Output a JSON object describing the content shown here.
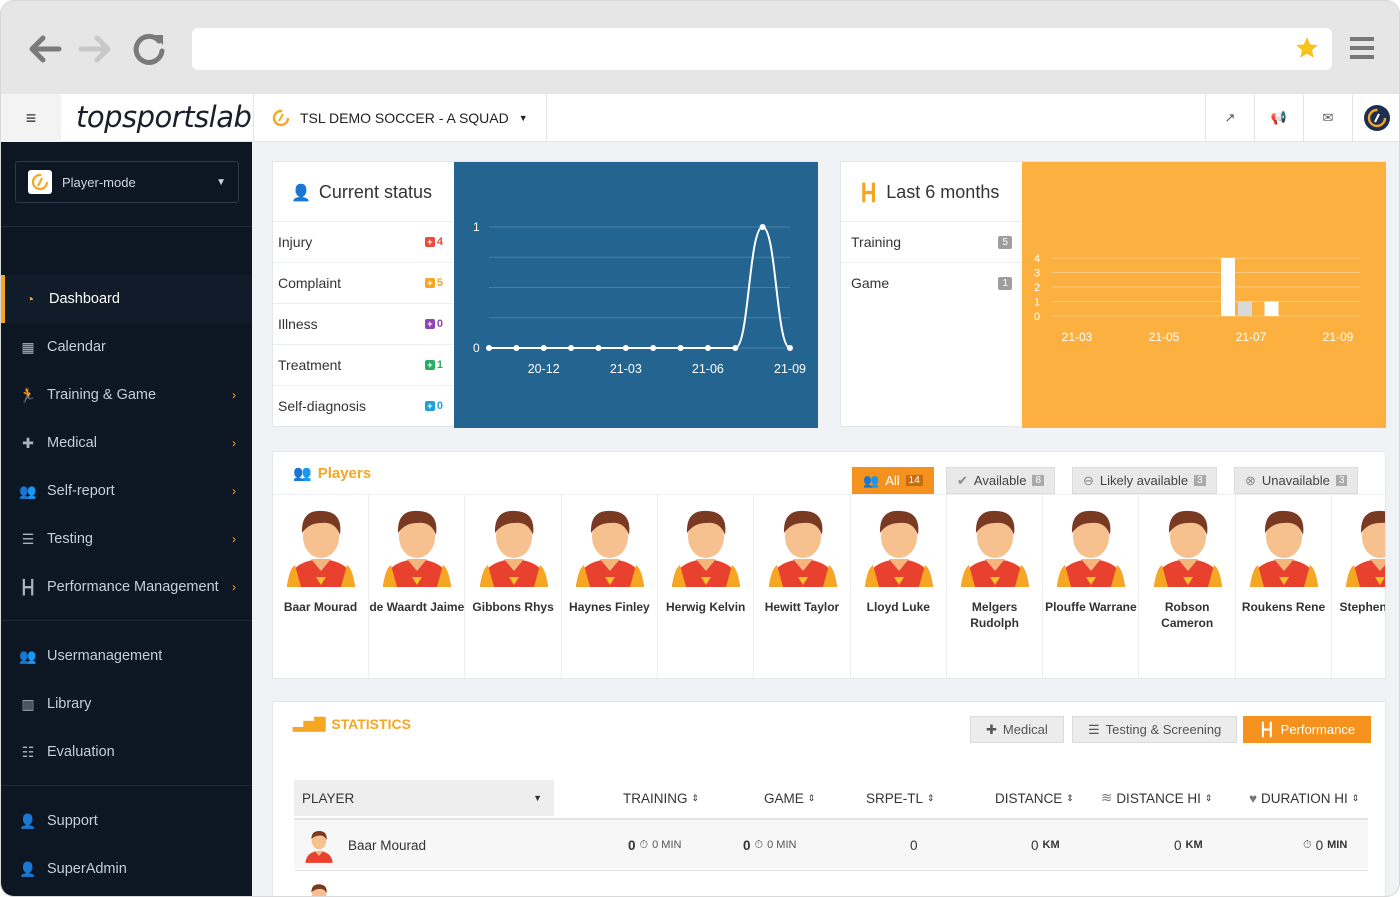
{
  "header": {
    "team": "TSL DEMO SOCCER - A SQUAD",
    "logo": "topsportslab"
  },
  "sidebar": {
    "mode": "Player-mode",
    "items": [
      {
        "label": "Dashboard",
        "icon": "dashboard-icon",
        "active": true
      },
      {
        "label": "Calendar",
        "icon": "calendar-icon"
      },
      {
        "label": "Training & Game",
        "icon": "running-icon",
        "chevron": true
      },
      {
        "label": "Medical",
        "icon": "medical-kit-icon",
        "chevron": true
      },
      {
        "label": "Self-report",
        "icon": "users-icon",
        "chevron": true
      },
      {
        "label": "Testing",
        "icon": "list-icon",
        "chevron": true
      },
      {
        "label": "Performance Management",
        "icon": "dumbbell-icon",
        "chevron": true
      },
      {
        "label": "Usermanagement",
        "icon": "user-group-icon"
      },
      {
        "label": "Library",
        "icon": "library-icon"
      },
      {
        "label": "Evaluation",
        "icon": "list-ol-icon"
      },
      {
        "label": "Support",
        "icon": "user-icon"
      },
      {
        "label": "SuperAdmin",
        "icon": "user-cog-icon"
      }
    ]
  },
  "current_status": {
    "title": "Current status",
    "rows": [
      {
        "label": "Injury",
        "count": "4",
        "color": "#e74c3c"
      },
      {
        "label": "Complaint",
        "count": "5",
        "color": "#f5a623"
      },
      {
        "label": "Illness",
        "count": "0",
        "color": "#8e44ad"
      },
      {
        "label": "Treatment",
        "count": "1",
        "color": "#27ae60"
      },
      {
        "label": "Self-diagnosis",
        "count": "0",
        "color": "#1fa2d6"
      }
    ]
  },
  "last_months": {
    "title": "Last 6 months",
    "rows": [
      {
        "label": "Training",
        "count": "5"
      },
      {
        "label": "Game",
        "count": "1"
      }
    ]
  },
  "chart_data": [
    {
      "type": "line",
      "background": "#236491",
      "x_ticks": [
        "20-12",
        "21-03",
        "21-06",
        "21-09"
      ],
      "y_ticks": [
        "0",
        "1"
      ],
      "ylim": [
        0,
        1
      ],
      "values": [
        0,
        0,
        0,
        0,
        0,
        0,
        0,
        0,
        0,
        0,
        1,
        0
      ]
    },
    {
      "type": "bar",
      "background": "#fbb040",
      "x_ticks": [
        "21-03",
        "21-05",
        "21-07",
        "21-09"
      ],
      "y_ticks": [
        "0",
        "1",
        "2",
        "3",
        "4"
      ],
      "ylim": [
        0,
        4
      ],
      "bars": [
        {
          "period": "21-07",
          "value": 4,
          "color": "#ffffff"
        },
        {
          "period": "21-07",
          "value": 1,
          "color": "#d9d9d9"
        },
        {
          "period": "21-08",
          "value": 1,
          "color": "#ffffff"
        }
      ]
    }
  ],
  "players": {
    "title": "Players",
    "filters": [
      {
        "label": "All",
        "count": "14",
        "active": true
      },
      {
        "label": "Available",
        "count": "8"
      },
      {
        "label": "Likely available",
        "count": "3"
      },
      {
        "label": "Unavailable",
        "count": "3"
      }
    ],
    "list": [
      "Baar Mourad",
      "de Waardt Jaime",
      "Gibbons Rhys",
      "Haynes Finley",
      "Herwig Kelvin",
      "Hewitt Taylor",
      "Lloyd Luke",
      "Melgers Rudolph",
      "Plouffe Warrane",
      "Robson Cameron",
      "Roukens Rene",
      "Stephens Lew"
    ]
  },
  "statistics": {
    "title": "STATISTICS",
    "tabs": [
      {
        "label": "Medical"
      },
      {
        "label": "Testing & Screening"
      },
      {
        "label": "Performance",
        "active": true
      }
    ],
    "columns": [
      "PLAYER",
      "TRAINING",
      "GAME",
      "SRPE-TL",
      "DISTANCE",
      "DISTANCE HI",
      "DURATION HI"
    ],
    "rows": [
      {
        "player": "Baar Mourad",
        "training": "0",
        "training_unit": "0 MIN",
        "game": "0",
        "game_unit": "0 MIN",
        "srpe": "0",
        "distance": "0",
        "distance_unit": "KM",
        "distance_hi": "0",
        "distance_hi_unit": "KM",
        "duration_hi": "0",
        "duration_hi_unit": "MIN"
      }
    ]
  }
}
